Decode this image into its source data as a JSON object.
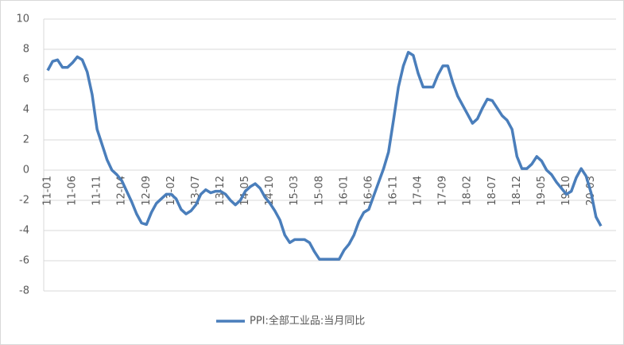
{
  "chart_data": {
    "type": "line",
    "categories": [
      "11-01",
      null,
      null,
      null,
      null,
      "11-06",
      null,
      null,
      null,
      null,
      "11-11",
      null,
      null,
      null,
      null,
      "12-04",
      null,
      null,
      null,
      null,
      "12-09",
      null,
      null,
      null,
      null,
      "13-02",
      null,
      null,
      null,
      null,
      "13-07",
      null,
      null,
      null,
      null,
      "13-12",
      null,
      null,
      null,
      null,
      "14-05",
      null,
      null,
      null,
      null,
      "14-10",
      null,
      null,
      null,
      null,
      "15-03",
      null,
      null,
      null,
      null,
      "15-08",
      null,
      null,
      null,
      null,
      "16-01",
      null,
      null,
      null,
      null,
      "16-06",
      null,
      null,
      null,
      null,
      "16-11",
      null,
      null,
      null,
      null,
      "17-04",
      null,
      null,
      null,
      null,
      "17-09",
      null,
      null,
      null,
      null,
      "18-02",
      null,
      null,
      null,
      null,
      "18-07",
      null,
      null,
      null,
      null,
      "18-12",
      null,
      null,
      null,
      null,
      "19-05",
      null,
      null,
      null,
      null,
      "19-10",
      null,
      null,
      null,
      null,
      "20-03",
      null,
      null
    ],
    "series": [
      {
        "name": "PPI:全部工业品:当月同比",
        "color": "#4a7ebb",
        "values": [
          6.6,
          7.2,
          7.3,
          6.8,
          6.8,
          7.1,
          7.5,
          7.3,
          6.5,
          5.0,
          2.7,
          1.7,
          0.7,
          0.0,
          -0.3,
          -0.7,
          -1.4,
          -2.1,
          -2.9,
          -3.5,
          -3.6,
          -2.8,
          -2.2,
          -1.9,
          -1.6,
          -1.6,
          -1.9,
          -2.6,
          -2.9,
          -2.7,
          -2.3,
          -1.6,
          -1.3,
          -1.5,
          -1.4,
          -1.4,
          -1.6,
          -2.0,
          -2.3,
          -2.0,
          -1.4,
          -1.1,
          -0.9,
          -1.2,
          -1.8,
          -2.2,
          -2.7,
          -3.3,
          -4.3,
          -4.8,
          -4.6,
          -4.6,
          -4.6,
          -4.8,
          -5.4,
          -5.9,
          -5.9,
          -5.9,
          -5.9,
          -5.9,
          -5.3,
          -4.9,
          -4.3,
          -3.4,
          -2.8,
          -2.6,
          -1.7,
          -0.8,
          0.1,
          1.2,
          3.3,
          5.5,
          6.9,
          7.8,
          7.6,
          6.4,
          5.5,
          5.5,
          5.5,
          6.3,
          6.9,
          6.9,
          5.8,
          4.9,
          4.3,
          3.7,
          3.1,
          3.4,
          4.1,
          4.7,
          4.6,
          4.1,
          3.6,
          3.3,
          2.7,
          0.9,
          0.1,
          0.1,
          0.4,
          0.9,
          0.6,
          0.0,
          -0.3,
          -0.8,
          -1.2,
          -1.6,
          -1.4,
          -0.5,
          0.1,
          -0.4,
          -1.5,
          -3.1,
          -3.7
        ]
      }
    ],
    "ylim": [
      -8,
      10
    ],
    "yticks": [
      -8,
      -6,
      -4,
      -2,
      0,
      2,
      4,
      6,
      8,
      10
    ],
    "grid": true,
    "legend": "bottom"
  }
}
